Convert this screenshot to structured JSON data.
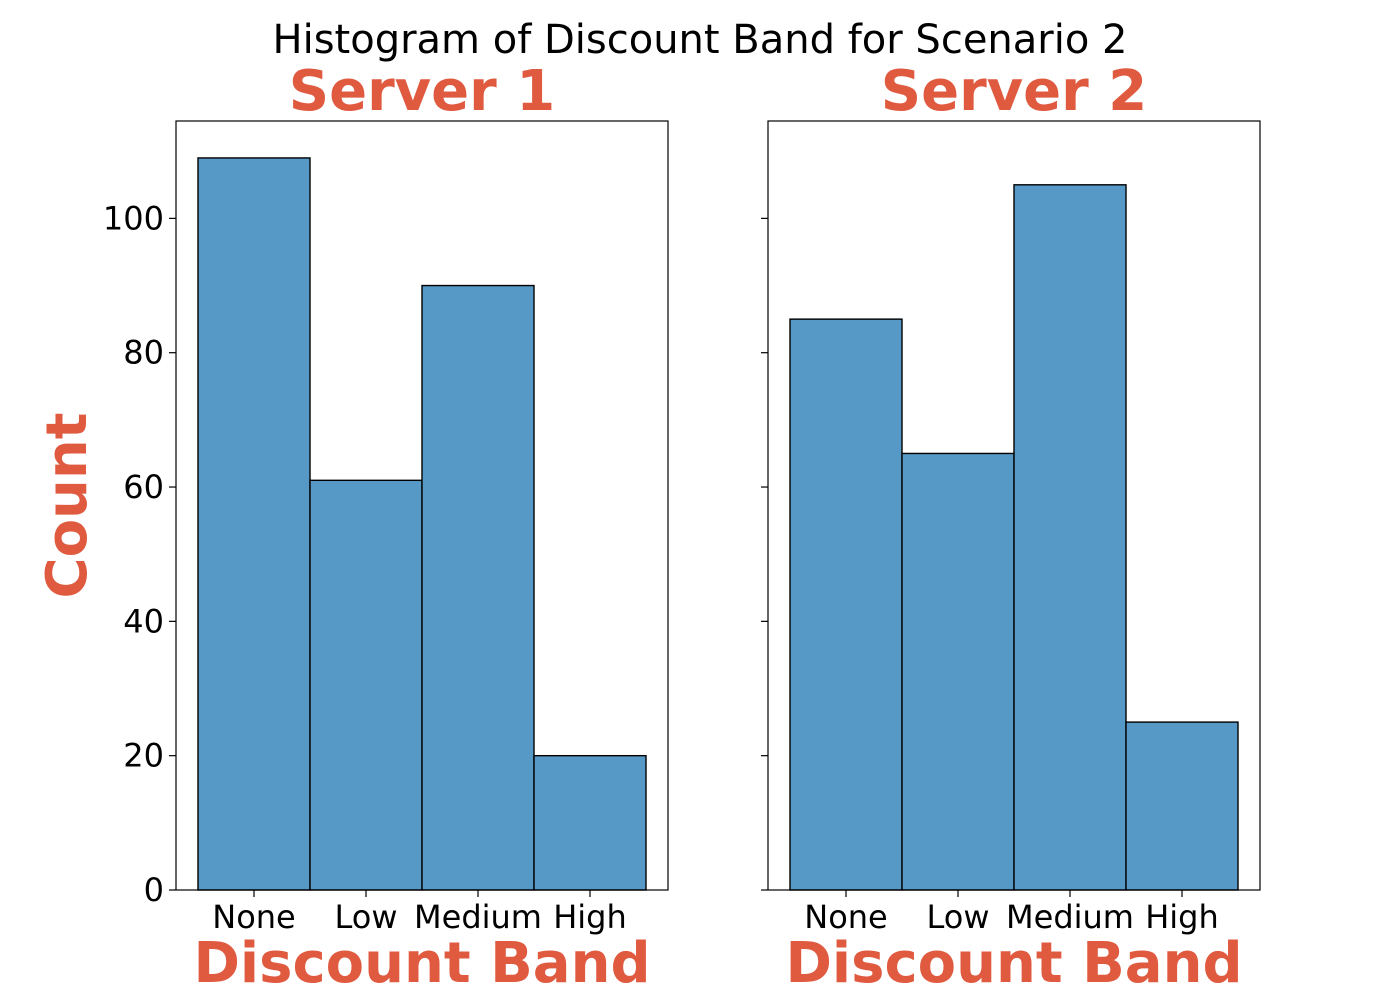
{
  "chart_data": {
    "type": "bar",
    "title": "Histogram of Discount Band for Scenario 2",
    "accent_color": "#e05a40",
    "bar_color": "#5799c6",
    "ylim": [
      0,
      114.5
    ],
    "yticks": [
      0,
      20,
      40,
      60,
      80,
      100
    ],
    "categories": [
      "None",
      "Low",
      "Medium",
      "High"
    ],
    "panels": [
      {
        "title": "Server 1",
        "xlabel": "Discount Band",
        "ylabel": "Count",
        "values": [
          109,
          61,
          90,
          20
        ]
      },
      {
        "title": "Server 2",
        "xlabel": "Discount Band",
        "ylabel": "",
        "values": [
          85,
          65,
          105,
          25
        ]
      }
    ]
  }
}
